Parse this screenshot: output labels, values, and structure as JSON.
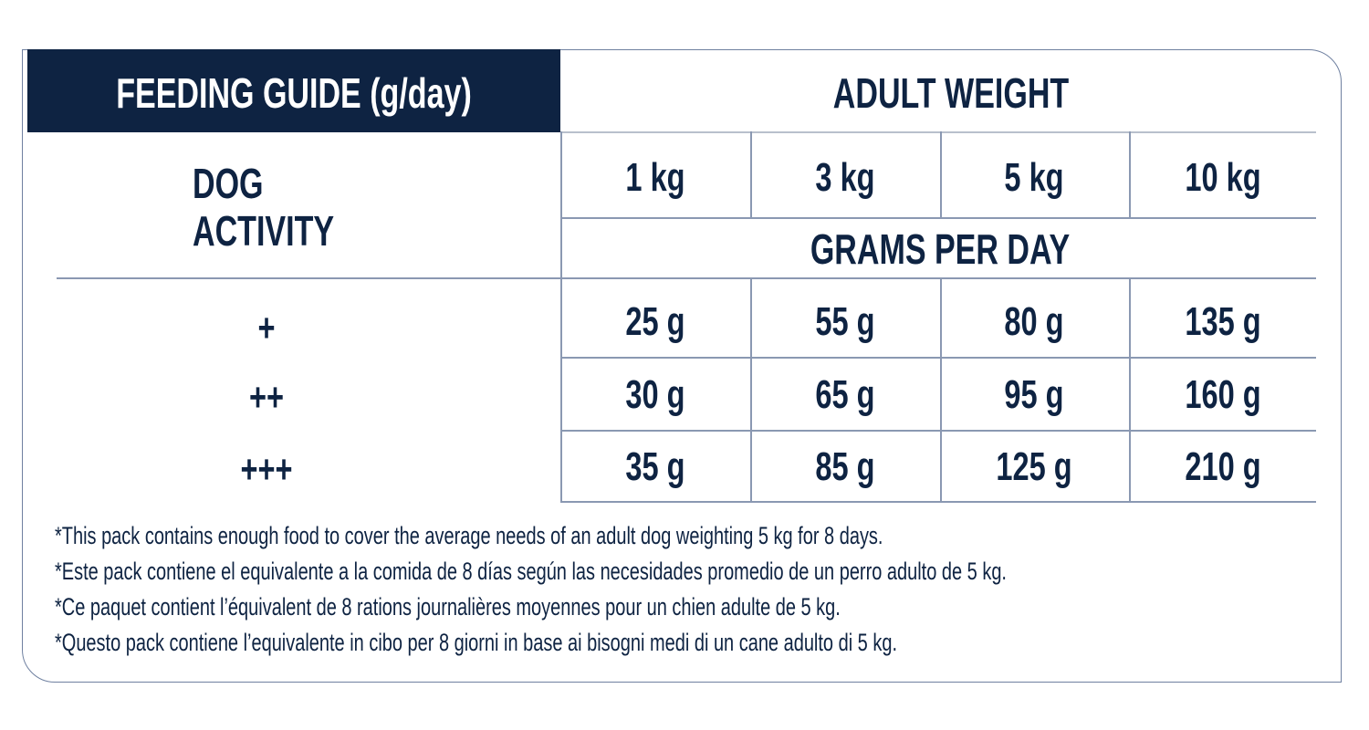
{
  "title": "FEEDING GUIDE (g/day)",
  "adult_weight_label": "ADULT WEIGHT",
  "activity_label": [
    "DOG",
    "ACTIVITY"
  ],
  "grams_per_day_label": "GRAMS PER DAY",
  "weights": [
    "1 kg",
    "3 kg",
    "5 kg",
    "10 kg"
  ],
  "rows": [
    {
      "activity": "+",
      "values": [
        "25 g",
        "55 g",
        "80 g",
        "135 g"
      ]
    },
    {
      "activity": "++",
      "values": [
        "30 g",
        "65 g",
        "95 g",
        "160 g"
      ]
    },
    {
      "activity": "+++",
      "values": [
        "35 g",
        "85 g",
        "125 g",
        "210 g"
      ]
    }
  ],
  "notes": [
    "*This pack contains enough food to cover the average needs of an adult dog weighting 5 kg for 8 days.",
    "*Este pack contiene el equivalente a la comida de 8 días según las necesidades promedio de un perro adulto de 5 kg.",
    "*Ce paquet contient l’équivalent de 8 rations journalières moyennes pour un chien adulte de 5 kg.",
    "*Questo pack contiene l’equivalente in cibo per 8 giorni in base ai bisogni medi di un cane adulto di 5 kg."
  ],
  "colors": {
    "navy": "#0e2342",
    "rule": "#8a98b2"
  }
}
